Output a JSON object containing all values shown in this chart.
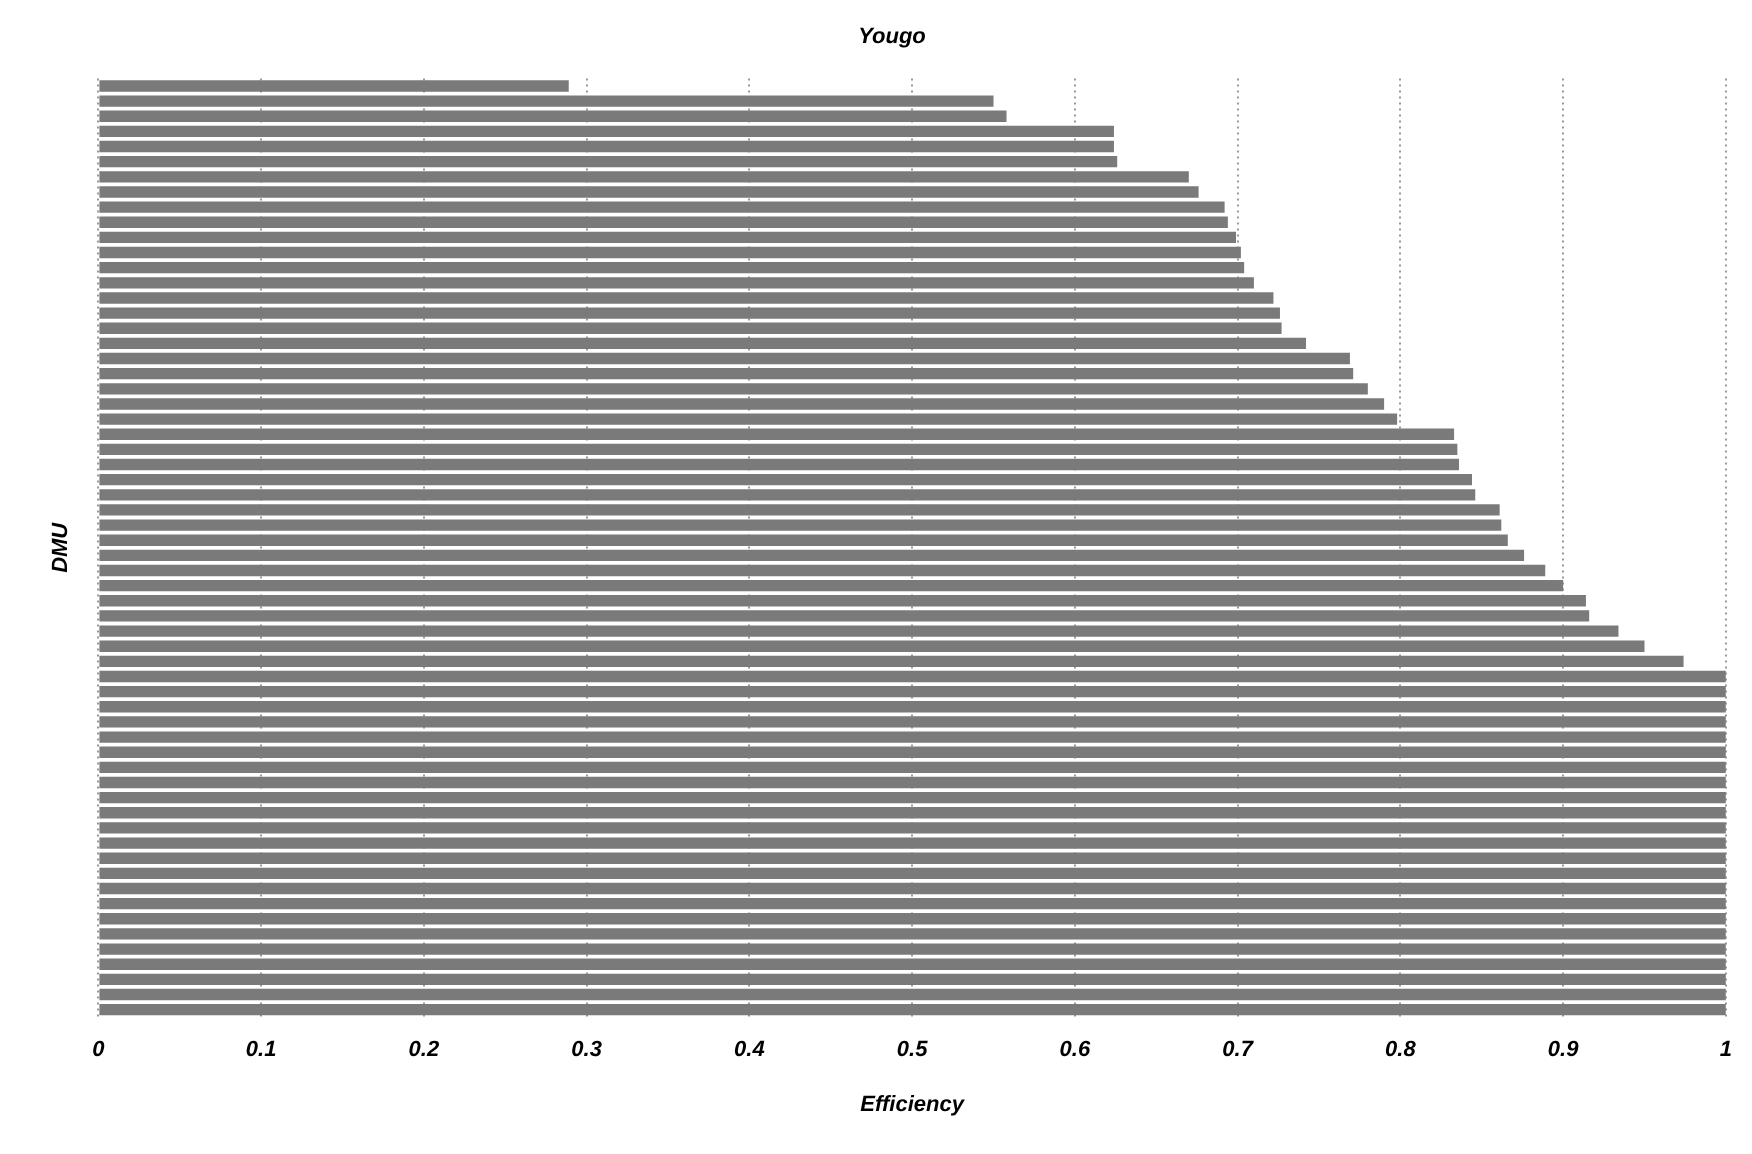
{
  "chart_data": {
    "type": "bar",
    "orientation": "horizontal",
    "title": "Yougo",
    "xlabel": "Efficiency",
    "ylabel": "DMU",
    "categories": [
      null,
      null,
      null,
      null,
      null,
      null,
      null,
      null,
      null,
      null,
      null,
      null,
      null,
      null,
      null,
      null,
      null,
      null,
      null,
      null,
      null,
      null,
      null,
      null,
      null,
      null,
      null,
      null,
      null,
      null,
      null,
      null,
      null,
      null,
      null,
      null,
      null,
      null,
      null,
      null,
      null,
      null,
      null,
      null,
      null,
      null,
      null,
      null,
      null,
      null,
      null,
      null,
      null,
      null,
      null,
      null,
      null,
      null,
      null,
      null,
      null,
      null
    ],
    "values": [
      0.289,
      0.55,
      0.558,
      0.624,
      0.624,
      0.626,
      0.67,
      0.676,
      0.692,
      0.694,
      0.699,
      0.702,
      0.704,
      0.71,
      0.722,
      0.726,
      0.727,
      0.742,
      0.769,
      0.771,
      0.78,
      0.79,
      0.798,
      0.833,
      0.835,
      0.836,
      0.844,
      0.846,
      0.861,
      0.862,
      0.866,
      0.876,
      0.889,
      0.9,
      0.914,
      0.916,
      0.934,
      0.95,
      0.974,
      1,
      1,
      1,
      1,
      1,
      1,
      1,
      1,
      1,
      1,
      1,
      1,
      1,
      1,
      1,
      1,
      1,
      1,
      1,
      1,
      1,
      1,
      1
    ],
    "color": "#7a7a7a",
    "xlim": [
      0,
      1
    ],
    "xticks": [
      0,
      0.1,
      0.2,
      0.3,
      0.4,
      0.5,
      0.6,
      0.7,
      0.8,
      0.9,
      1
    ],
    "grid": "x",
    "legend": false
  }
}
